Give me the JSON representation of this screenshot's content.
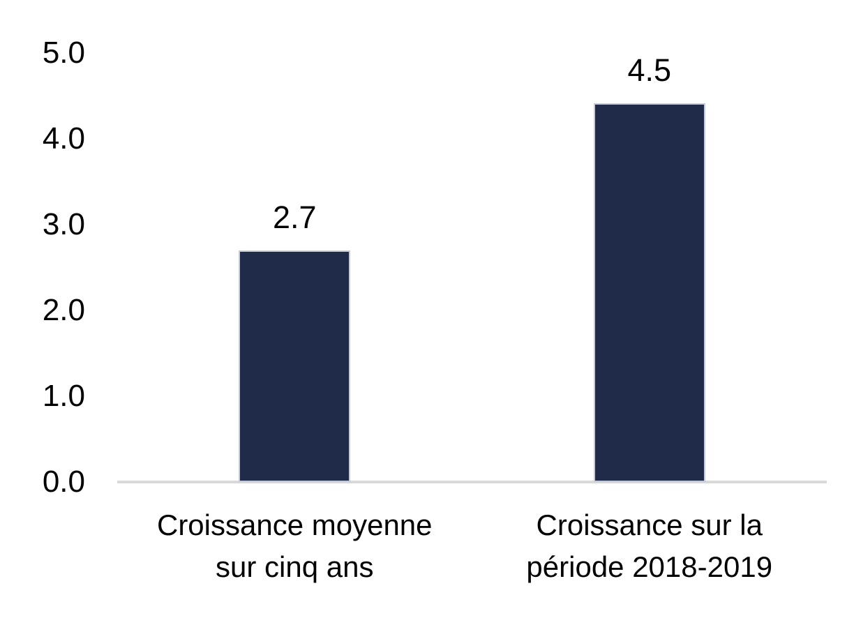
{
  "chart_data": {
    "type": "bar",
    "title": "",
    "xlabel": "",
    "ylabel": "",
    "categories": [
      "Croissance moyenne sur cinq ans",
      "Croissance sur la période 2018-2019"
    ],
    "values": [
      2.7,
      4.5
    ],
    "data_labels": [
      "2.7",
      "4.5"
    ],
    "yticks": [
      "5.0",
      "4.0",
      "3.0",
      "2.0",
      "1.0",
      "0.0"
    ],
    "ylim": [
      0,
      5
    ],
    "grid": false,
    "legend": false,
    "bar_color": "#1F2B48",
    "bar_border_color": "#C7CBD6",
    "axis_line_color": "#D9D9D9",
    "text_color": "#000000"
  }
}
